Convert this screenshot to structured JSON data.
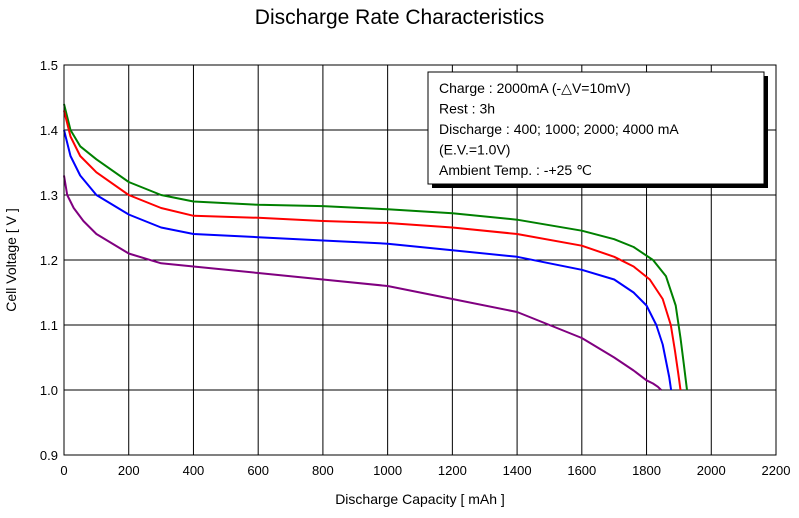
{
  "chart_data": {
    "type": "line",
    "title": "Discharge Rate Characteristics",
    "xlabel": "Discharge Capacity [ mAh ]",
    "ylabel": "Cell Voltage [ V ]",
    "xlim": [
      0,
      2200
    ],
    "ylim": [
      0.9,
      1.5
    ],
    "xticks": [
      "0",
      "200",
      "400",
      "600",
      "800",
      "1000",
      "1200",
      "1400",
      "1600",
      "1800",
      "2000",
      "2200"
    ],
    "yticks": [
      "0.9",
      "1.0",
      "1.1",
      "1.2",
      "1.3",
      "1.4",
      "1.5"
    ],
    "grid": true,
    "legend_box": [
      "Charge : 2000mA (-△V=10mV)",
      "Rest : 3h",
      "Discharge : 400; 1000; 2000; 4000 mA",
      "(E.V.=1.0V)",
      "Ambient Temp. : -+25 ℃"
    ],
    "legend_placement": "top-right",
    "series": [
      {
        "color": "#008000",
        "x": [
          0,
          20,
          50,
          100,
          200,
          300,
          400,
          600,
          800,
          1000,
          1200,
          1400,
          1600,
          1700,
          1760,
          1820,
          1860,
          1890,
          1905,
          1915,
          1925
        ],
        "y": [
          1.44,
          1.4,
          1.375,
          1.355,
          1.32,
          1.3,
          1.29,
          1.285,
          1.283,
          1.278,
          1.272,
          1.262,
          1.245,
          1.232,
          1.22,
          1.2,
          1.175,
          1.13,
          1.08,
          1.04,
          1.0
        ]
      },
      {
        "color": "#ff0000",
        "x": [
          0,
          20,
          50,
          100,
          200,
          300,
          400,
          600,
          800,
          1000,
          1200,
          1400,
          1600,
          1700,
          1760,
          1810,
          1850,
          1875,
          1888,
          1898,
          1905
        ],
        "y": [
          1.43,
          1.39,
          1.36,
          1.335,
          1.3,
          1.28,
          1.268,
          1.265,
          1.26,
          1.257,
          1.25,
          1.24,
          1.222,
          1.205,
          1.19,
          1.17,
          1.14,
          1.1,
          1.06,
          1.025,
          1.0
        ]
      },
      {
        "color": "#0000ff",
        "x": [
          0,
          20,
          50,
          100,
          200,
          300,
          400,
          600,
          800,
          1000,
          1200,
          1400,
          1600,
          1700,
          1760,
          1800,
          1830,
          1850,
          1862,
          1870,
          1876
        ],
        "y": [
          1.4,
          1.36,
          1.33,
          1.3,
          1.27,
          1.25,
          1.24,
          1.235,
          1.23,
          1.225,
          1.215,
          1.205,
          1.185,
          1.17,
          1.15,
          1.13,
          1.1,
          1.07,
          1.04,
          1.02,
          1.0
        ]
      },
      {
        "color": "#800080",
        "x": [
          0,
          10,
          30,
          60,
          100,
          200,
          300,
          400,
          600,
          800,
          1000,
          1200,
          1400,
          1500,
          1600,
          1700,
          1760,
          1800,
          1820,
          1835,
          1845
        ],
        "y": [
          1.33,
          1.3,
          1.28,
          1.26,
          1.24,
          1.21,
          1.195,
          1.19,
          1.18,
          1.17,
          1.16,
          1.14,
          1.12,
          1.1,
          1.08,
          1.05,
          1.03,
          1.015,
          1.01,
          1.005,
          1.0
        ]
      }
    ]
  }
}
